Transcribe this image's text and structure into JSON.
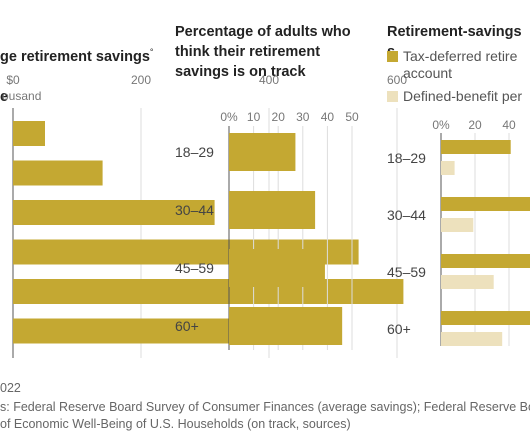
{
  "titles": {
    "left": "ge retirement savings",
    "left_mark": "°",
    "left_line2": "e",
    "middle": "Percentage of adults who\nthink their retirement\nsavings is on track",
    "right": "Retirement-savings s"
  },
  "chart_data": [
    {
      "type": "bar",
      "orientation": "horizontal",
      "axis_unit_label": "ousand",
      "xlim": [
        0,
        600
      ],
      "xticks": [
        "$0",
        "200",
        "400",
        "600"
      ],
      "values": [
        50,
        140,
        315,
        540,
        610,
        470
      ],
      "colors": {
        "bar": "#c4a832"
      }
    },
    {
      "type": "bar",
      "orientation": "horizontal",
      "categories": [
        "18–29",
        "30–44",
        "45–59",
        "60+"
      ],
      "xlim": [
        0,
        50
      ],
      "xticks": [
        "0%",
        "10",
        "20",
        "30",
        "40",
        "50"
      ],
      "values": [
        27,
        35,
        39,
        46
      ],
      "colors": {
        "bar": "#c4a832"
      }
    },
    {
      "type": "bar",
      "orientation": "horizontal",
      "categories": [
        "18–29",
        "30–44",
        "45–59",
        "60+"
      ],
      "xticks": [
        "0%",
        "20",
        "40"
      ],
      "xlim": [
        0,
        40
      ],
      "legend": [
        "Tax-deferred retire\naccount",
        "Defined-benefit per"
      ],
      "series": [
        {
          "name": "Tax-deferred retire account",
          "values": [
            41,
            60,
            60,
            60
          ]
        },
        {
          "name": "Defined-benefit per",
          "values": [
            8,
            19,
            31,
            36
          ]
        }
      ],
      "colors": [
        "#c4a832",
        "#ede1bd"
      ]
    }
  ],
  "notes": {
    "year": "022",
    "source1": "s: Federal Reserve Board Survey of Consumer Finances (average savings); Federal Reserve Boa",
    "source2": "of Economic Well-Being of U.S. Households (on track, sources)"
  }
}
